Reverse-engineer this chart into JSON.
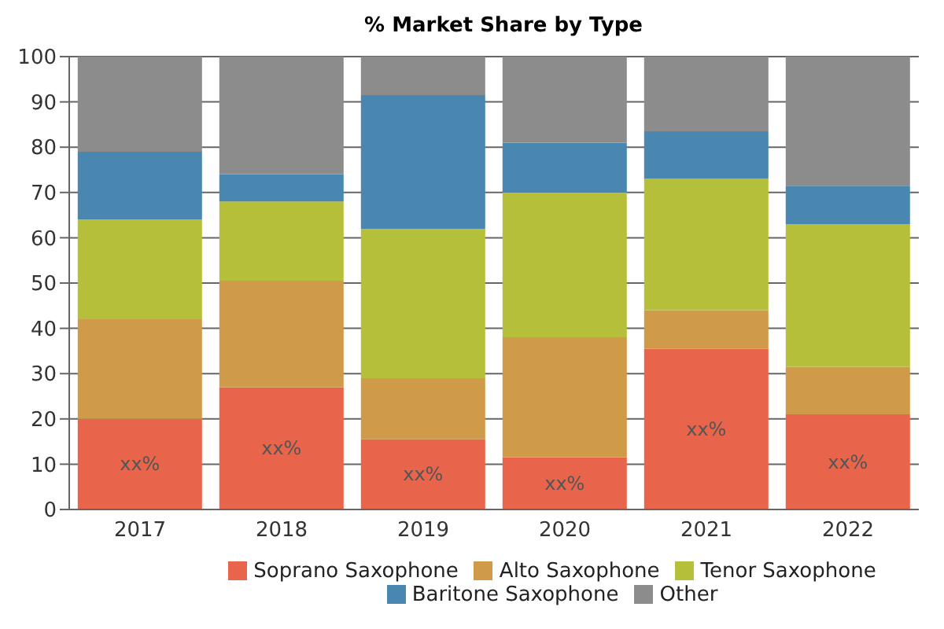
{
  "chart_data": {
    "type": "bar",
    "title": "% Market Share by Type",
    "stacked": true,
    "categories": [
      "2017",
      "2018",
      "2019",
      "2020",
      "2021",
      "2022"
    ],
    "ylim": [
      0,
      100
    ],
    "yticks": [
      0,
      10,
      20,
      30,
      40,
      50,
      60,
      70,
      80,
      90,
      100
    ],
    "grid": "y",
    "legend": "bottom",
    "series": [
      {
        "name": "Soprano Saxophone",
        "color": "#e8644a",
        "values": [
          20,
          27,
          15.5,
          11.5,
          35.5,
          21
        ],
        "value_labels": [
          "xx%",
          "xx%",
          "xx%",
          "xx%",
          "xx%",
          "xx%"
        ]
      },
      {
        "name": "Alto Saxophone",
        "color": "#cf9b48",
        "values": [
          22,
          23.5,
          13.5,
          26.5,
          8.5,
          10.5
        ]
      },
      {
        "name": "Tenor Saxophone",
        "color": "#b5bf3a",
        "values": [
          22,
          17.5,
          33,
          32,
          29,
          31.5
        ]
      },
      {
        "name": "Baritone Saxophone",
        "color": "#4a87b0",
        "values": [
          15,
          6,
          29.5,
          11,
          10.5,
          8.5
        ]
      },
      {
        "name": "Other",
        "color": "#8c8c8c",
        "values": [
          21,
          26,
          8.5,
          19,
          16.5,
          28.5
        ]
      }
    ]
  }
}
